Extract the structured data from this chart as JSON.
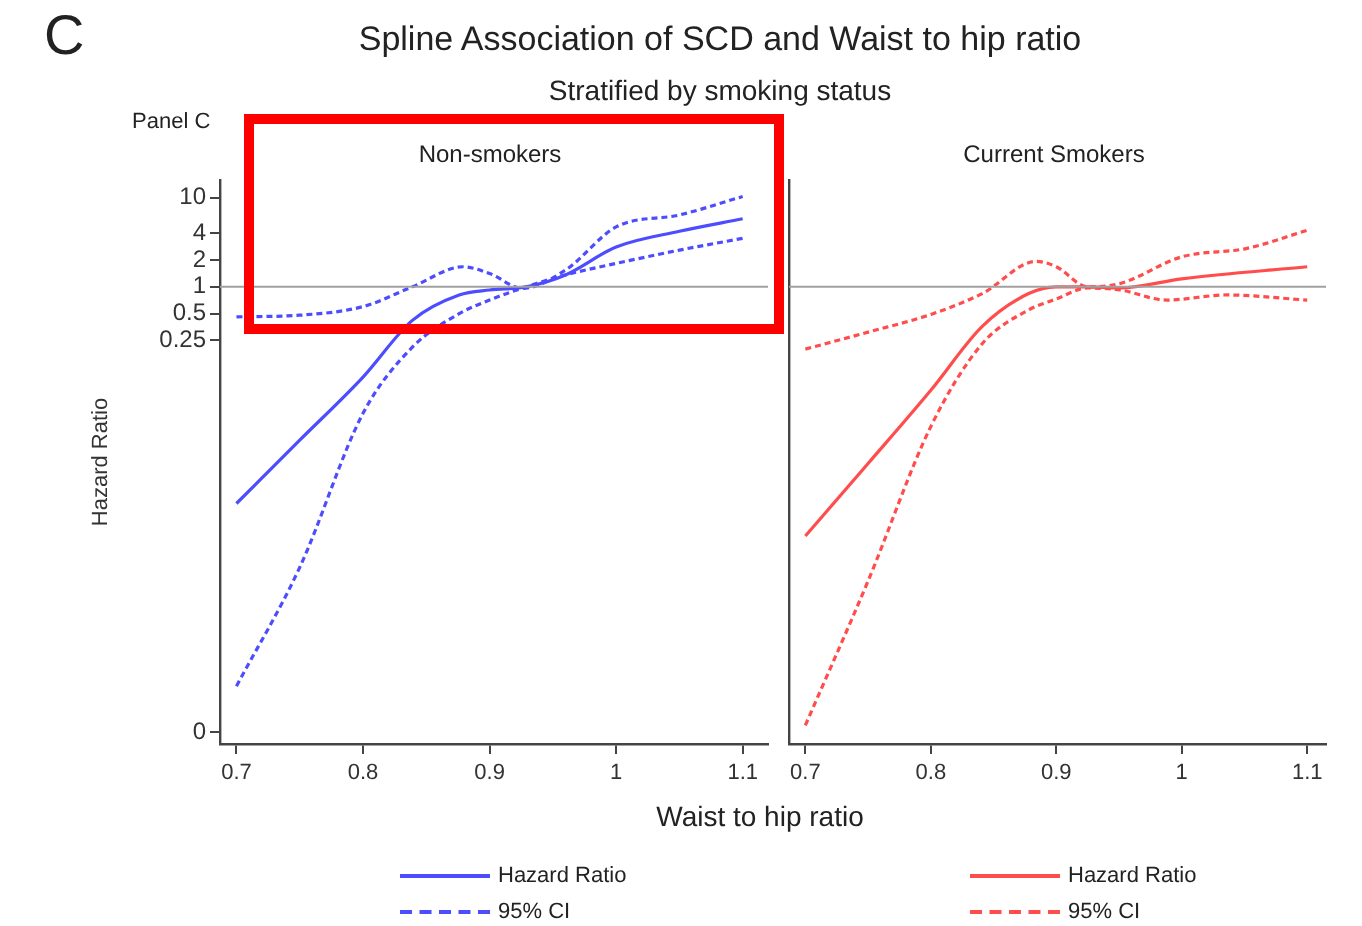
{
  "chart_data": [
    {
      "type": "line",
      "title": "Non-smokers",
      "xlabel": "Waist to hip ratio",
      "ylabel": "Hazard Ratio",
      "annotations": [
        "C",
        "Spline Association of SCD and Waist to hip ratio",
        "Stratified by smoking status",
        "Panel C"
      ],
      "log": "y",
      "xlim": [
        0.687,
        1.12
      ],
      "xticks": [
        0.7,
        0.8,
        0.9,
        1,
        1.1
      ],
      "ylim": [
        7.4e-06,
        15.8
      ],
      "yticks": [
        {
          "value": 1e-05,
          "label": "0"
        },
        0.25,
        0.5,
        1,
        2,
        4,
        10
      ],
      "ref_lines": [
        {
          "axis": "y",
          "value": 1,
          "color": "#a0a0a0"
        }
      ],
      "legend": "bottom",
      "series": [
        {
          "name": "Hazard Ratio",
          "color": "#4d4dff",
          "line_style": "solid",
          "x": [
            0.7,
            0.75,
            0.8,
            0.839,
            0.876,
            0.9,
            0.929,
            0.96,
            1.0,
            1.05,
            1.1
          ],
          "values": [
            0.0037,
            0.019,
            0.097,
            0.42,
            0.81,
            0.92,
            1.0,
            1.36,
            2.8,
            4.2,
            5.8
          ]
        },
        {
          "name": "95% CI",
          "color": "#4d4dff",
          "line_style": "dashed",
          "x": [
            0.7,
            0.75,
            0.8,
            0.839,
            0.879,
            0.9,
            0.926,
            0.96,
            1.0,
            1.05,
            1.1
          ],
          "values": [
            0.46,
            0.48,
            0.6,
            1.0,
            1.68,
            1.41,
            0.96,
            1.54,
            4.7,
            6.4,
            10.3
          ]
        },
        {
          "color": "#4d4dff",
          "line_style": "dashed",
          "x": [
            0.7,
            0.75,
            0.8,
            0.839,
            0.876,
            0.9,
            0.929,
            0.96,
            1.0,
            1.05,
            1.1
          ],
          "values": [
            3.3e-05,
            0.00071,
            0.038,
            0.21,
            0.5,
            0.71,
            1.0,
            1.36,
            1.83,
            2.58,
            3.5
          ]
        }
      ]
    },
    {
      "type": "line",
      "title": "Current Smokers",
      "log": "y",
      "tick_labels": "x",
      "xlim": [
        0.687,
        1.115
      ],
      "xticks": [
        0.7,
        0.8,
        0.9,
        1,
        1.1
      ],
      "ylim": [
        7.4e-06,
        15.8
      ],
      "ref_lines": [
        {
          "axis": "y",
          "value": 1,
          "color": "#a0a0a0"
        }
      ],
      "legend": "bottom",
      "series": [
        {
          "name": "Hazard Ratio",
          "color": "#ff4d4d",
          "line_style": "solid",
          "x": [
            0.7,
            0.75,
            0.8,
            0.841,
            0.878,
            0.9,
            0.925,
            0.951,
            1.0,
            1.1
          ],
          "values": [
            0.0016,
            0.0104,
            0.069,
            0.36,
            0.84,
            1.0,
            1.0,
            0.97,
            1.23,
            1.68
          ]
        },
        {
          "name": "95% CI",
          "color": "#ff4d4d",
          "line_style": "dashed",
          "x": [
            0.7,
            0.75,
            0.8,
            0.841,
            0.884,
            0.9,
            0.925,
            0.951,
            1.0,
            1.052,
            1.1
          ],
          "values": [
            0.2,
            0.31,
            0.49,
            0.84,
            1.93,
            1.68,
            1.0,
            1.09,
            2.17,
            2.7,
            4.3
          ]
        },
        {
          "color": "#ff4d4d",
          "line_style": "dashed",
          "x": [
            0.7,
            0.75,
            0.8,
            0.841,
            0.878,
            0.9,
            0.925,
            0.951,
            0.988,
            1.036,
            1.1
          ],
          "values": [
            1.2e-05,
            0.0005,
            0.027,
            0.23,
            0.55,
            0.73,
            0.97,
            0.92,
            0.71,
            0.81,
            0.71
          ]
        }
      ]
    }
  ]
}
